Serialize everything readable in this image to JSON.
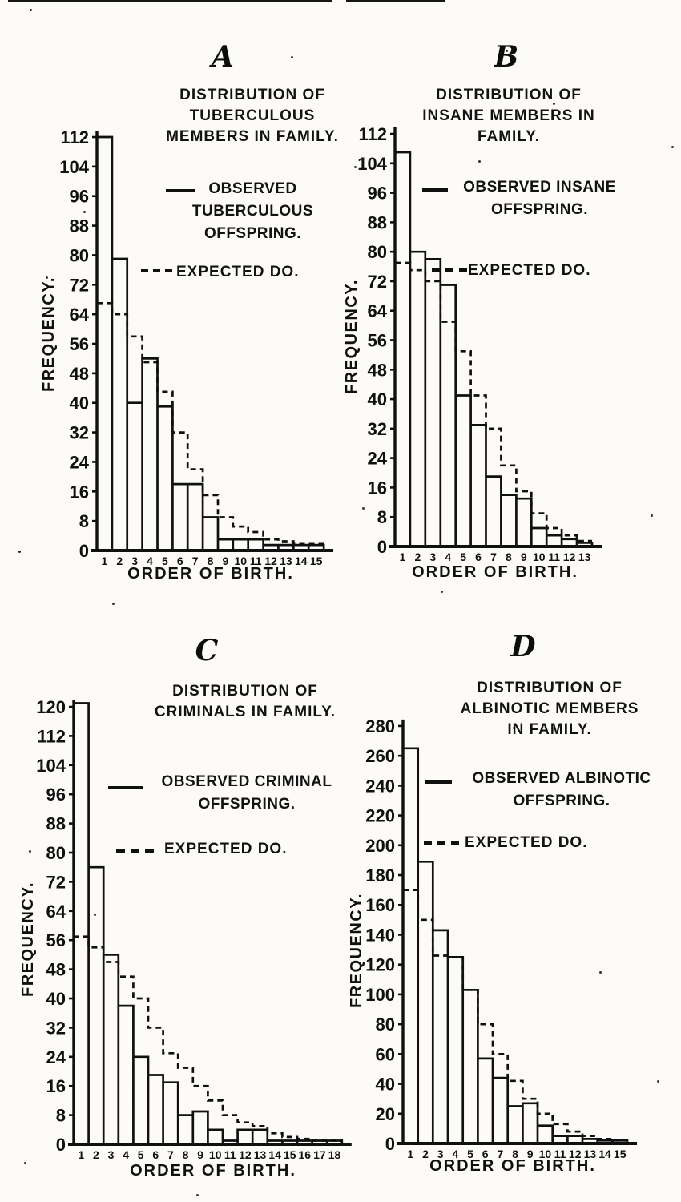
{
  "page": {
    "background_color": "#fcfbf8",
    "ink_color": "#101010",
    "description_note": ""
  },
  "chart_data": [
    {
      "panel": "A",
      "type": "bar",
      "title": "DISTRIBUTION OF\nTUBERCULOUS\nMEMBERS IN FAMILY.",
      "xlabel": "ORDER OF BIRTH.",
      "ylabel": "FREQUENCY.",
      "categories": [
        1,
        2,
        3,
        4,
        5,
        6,
        7,
        8,
        9,
        10,
        11,
        12,
        13,
        14,
        15
      ],
      "series": [
        {
          "name": "OBSERVED\nTUBERCULOUS\nOFFSPRING.",
          "style": "solid-outline-bars",
          "values": [
            112,
            79,
            40,
            52,
            39,
            18,
            18,
            9,
            3,
            3,
            3,
            1.5,
            1.5,
            1.5,
            1.5
          ]
        },
        {
          "name": "EXPECTED DO.",
          "style": "dashed-step-line",
          "values": [
            67,
            64,
            58,
            51,
            43,
            32,
            22,
            15,
            9,
            6.5,
            5,
            3,
            2.5,
            2,
            2
          ]
        }
      ],
      "y_ticks": [
        0,
        8,
        16,
        24,
        32,
        40,
        48,
        56,
        64,
        72,
        80,
        88,
        96,
        104,
        112
      ],
      "ylim": [
        0,
        116
      ],
      "legend_position": "upper-right",
      "grid": false
    },
    {
      "panel": "B",
      "type": "bar",
      "title": "DISTRIBUTION OF\nINSANE MEMBERS IN\nFAMILY.",
      "xlabel": "ORDER OF BIRTH.",
      "ylabel": "FREQUENCY.",
      "categories": [
        1,
        2,
        3,
        4,
        5,
        6,
        7,
        8,
        9,
        10,
        11,
        12,
        13
      ],
      "series": [
        {
          "name": "OBSERVED INSANE\nOFFSPRING.",
          "style": "solid-outline-bars",
          "values": [
            107,
            80,
            78,
            71,
            41,
            33,
            19,
            14,
            13,
            5,
            3,
            2,
            1
          ]
        },
        {
          "name": "EXPECTED DO.",
          "style": "dashed-step-line",
          "values": [
            77,
            75,
            72,
            61,
            53,
            41,
            32,
            22,
            15,
            9,
            5,
            3,
            1.5
          ]
        }
      ],
      "y_ticks": [
        0,
        8,
        16,
        24,
        32,
        40,
        48,
        56,
        64,
        72,
        80,
        88,
        96,
        104,
        112
      ],
      "ylim": [
        0,
        116
      ],
      "legend_position": "upper-right",
      "grid": false
    },
    {
      "panel": "C",
      "type": "bar",
      "title": "DISTRIBUTION OF\nCRIMINALS IN FAMILY.",
      "xlabel": "ORDER OF BIRTH.",
      "ylabel": "FREQUENCY.",
      "categories": [
        1,
        2,
        3,
        4,
        5,
        6,
        7,
        8,
        9,
        10,
        11,
        12,
        13,
        14,
        15,
        16,
        17,
        18
      ],
      "series": [
        {
          "name": "OBSERVED CRIMINAL\nOFFSPRING.",
          "style": "solid-outline-bars",
          "values": [
            121,
            76,
            52,
            38,
            24,
            19,
            17,
            8,
            9,
            4,
            1,
            4,
            4,
            1,
            1,
            1,
            1,
            1
          ]
        },
        {
          "name": "EXPECTED DO.",
          "style": "dashed-step-line",
          "values": [
            57,
            54,
            50,
            46,
            40,
            32,
            25,
            21,
            16,
            12,
            8,
            6,
            5,
            3,
            2,
            1.5,
            1,
            1
          ]
        }
      ],
      "y_ticks": [
        0,
        8,
        16,
        24,
        32,
        40,
        48,
        56,
        64,
        72,
        80,
        88,
        96,
        104,
        112,
        120
      ],
      "ylim": [
        0,
        124
      ],
      "legend_position": "upper-right",
      "grid": false
    },
    {
      "panel": "D",
      "type": "bar",
      "title": "DISTRIBUTION OF\nALBINOTIC MEMBERS\nIN FAMILY.",
      "xlabel": "ORDER OF BIRTH.",
      "ylabel": "FREQUENCY.",
      "categories": [
        1,
        2,
        3,
        4,
        5,
        6,
        7,
        8,
        9,
        10,
        11,
        12,
        13,
        14,
        15
      ],
      "series": [
        {
          "name": "OBSERVED ALBINOTIC\nOFFSPRING.",
          "style": "solid-outline-bars",
          "values": [
            265,
            189,
            143,
            125,
            103,
            57,
            44,
            25,
            27,
            12,
            5,
            5,
            3,
            2,
            2
          ]
        },
        {
          "name": "EXPECTED DO.",
          "style": "dashed-step-line",
          "values": [
            170,
            150,
            126,
            125,
            103,
            80,
            60,
            42,
            30,
            20,
            13,
            8,
            5,
            3,
            2
          ]
        }
      ],
      "y_ticks": [
        0,
        20,
        40,
        60,
        80,
        100,
        120,
        140,
        160,
        180,
        200,
        220,
        240,
        260,
        280
      ],
      "ylim": [
        0,
        284
      ],
      "legend_position": "upper-right",
      "grid": false
    }
  ]
}
